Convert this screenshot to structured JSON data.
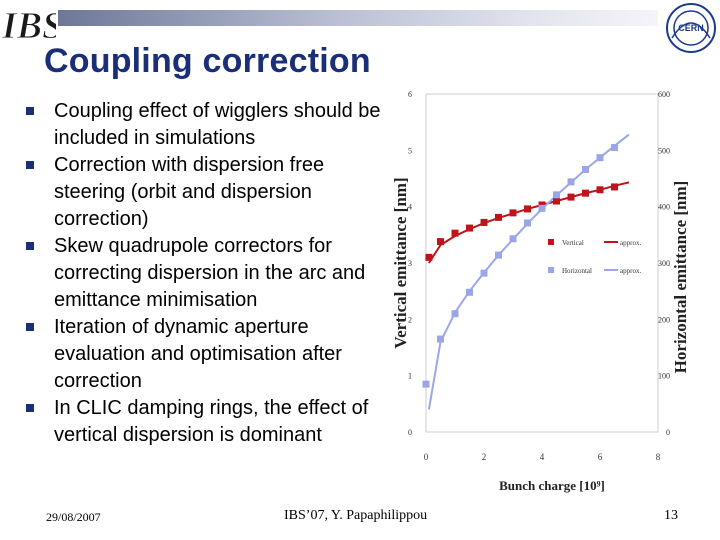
{
  "header": {
    "logo_text": "IBS",
    "lab_logo_text": "CERN",
    "title": "Coupling correction"
  },
  "bullets": [
    "Coupling effect of wigglers should be included in simulations",
    "Correction with dispersion free steering (orbit and dispersion correction)",
    "Skew quadrupole correctors for correcting dispersion in the arc and emittance minimisation",
    "Iteration of dynamic aperture evaluation and optimisation after correction",
    "In CLIC damping rings, the effect of vertical dispersion is dominant"
  ],
  "footer": {
    "date": "29/08/2007",
    "center": "IBS’07, Y. Papaphilippou",
    "page": "13"
  },
  "colors": {
    "title": "#1b2f78",
    "vertical": "#c0141a",
    "horizontal": "#9aa6e8"
  },
  "chart_data": {
    "type": "scatter",
    "xlabel": "Bunch charge [10⁹]",
    "ylabel": "Vertical emittance [nm]",
    "y2label": "Horizontal emittance [nm]",
    "xlim": [
      0,
      8
    ],
    "ylim": [
      0,
      6
    ],
    "y2lim": [
      0,
      600
    ],
    "xticks": [
      "0",
      "2",
      "4",
      "6",
      "8"
    ],
    "yticks": [
      "0",
      "1",
      "2",
      "3",
      "4",
      "5",
      "6"
    ],
    "y2ticks": [
      "0",
      "100",
      "200",
      "300",
      "400",
      "500",
      "600"
    ],
    "legend_position": "right-middle",
    "series": [
      {
        "name": "Vertical",
        "axis": "left",
        "kind": "points",
        "x": [
          0.1,
          0.5,
          1.0,
          1.5,
          2.0,
          2.5,
          3.0,
          3.5,
          4.0,
          4.5,
          5.0,
          5.5,
          6.0,
          6.5
        ],
        "y": [
          3.1,
          3.38,
          3.53,
          3.62,
          3.72,
          3.81,
          3.89,
          3.96,
          4.03,
          4.1,
          4.17,
          4.24,
          4.3,
          4.35
        ]
      },
      {
        "name": "approx.",
        "axis": "left",
        "kind": "line",
        "x": [
          0.1,
          0.5,
          1.0,
          1.5,
          2.0,
          2.5,
          3.0,
          3.5,
          4.0,
          4.5,
          5.0,
          5.5,
          6.0,
          6.5,
          7.0
        ],
        "y": [
          3.0,
          3.32,
          3.48,
          3.6,
          3.71,
          3.8,
          3.88,
          3.96,
          4.03,
          4.1,
          4.17,
          4.24,
          4.3,
          4.37,
          4.43
        ]
      },
      {
        "name": "Horizontal",
        "axis": "right",
        "kind": "points",
        "x": [
          0.0,
          0.5,
          1.0,
          1.5,
          2.0,
          2.5,
          3.0,
          3.5,
          4.0,
          4.5,
          5.0,
          5.5,
          6.0,
          6.5
        ],
        "y": [
          85,
          165,
          210,
          248,
          282,
          314,
          343,
          371,
          397,
          421,
          444,
          466,
          487,
          505
        ]
      },
      {
        "name": "approx.",
        "axis": "right",
        "kind": "line",
        "x": [
          0.1,
          0.5,
          1.0,
          1.5,
          2.0,
          2.5,
          3.0,
          3.5,
          4.0,
          4.5,
          5.0,
          5.5,
          6.0,
          6.5,
          7.0
        ],
        "y": [
          40,
          160,
          212,
          250,
          283,
          314,
          342,
          370,
          396,
          420,
          443,
          466,
          487,
          508,
          528
        ]
      }
    ]
  }
}
